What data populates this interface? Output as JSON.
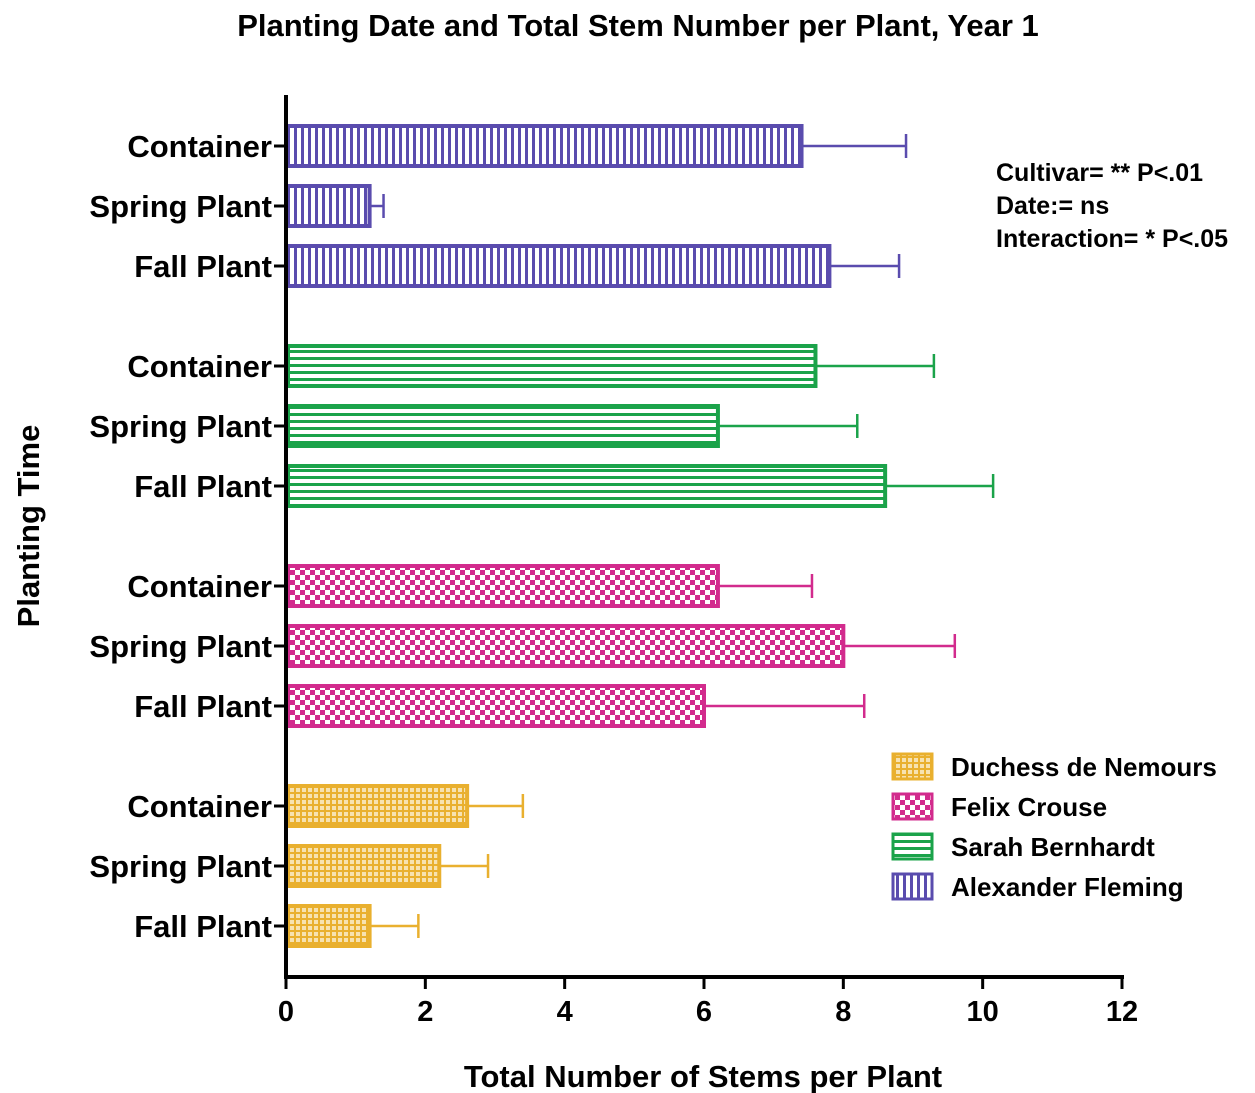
{
  "chart_data": {
    "type": "bar",
    "orientation": "horizontal",
    "title": "Planting Date and Total Stem Number per Plant, Year 1",
    "xlabel": "Total Number of Stems per Plant",
    "ylabel": "Planting Time",
    "xlim": [
      0,
      12
    ],
    "xticks": [
      "0",
      "2",
      "4",
      "6",
      "8",
      "10",
      "12"
    ],
    "categories": [
      "Container",
      "Spring Plant",
      "Fall Plant"
    ],
    "grid": false,
    "legend_position": "bottom-right",
    "annotations": [
      "Cultivar= ** P<.01",
      "Date:= ns",
      "Interaction= * P<.05"
    ],
    "series": [
      {
        "name": "Alexander Fleming",
        "color": "#5a4cae",
        "pattern": "vertical-lines",
        "values": [
          7.4,
          1.2,
          7.8
        ],
        "errors": [
          1.5,
          0.2,
          1.0
        ]
      },
      {
        "name": "Sarah Bernhardt",
        "color": "#1ba34a",
        "pattern": "horizontal-lines",
        "values": [
          7.6,
          6.2,
          8.6
        ],
        "errors": [
          1.7,
          2.0,
          1.55
        ]
      },
      {
        "name": "Felix Crouse",
        "color": "#d22b8d",
        "pattern": "checker",
        "values": [
          6.2,
          8.0,
          6.0
        ],
        "errors": [
          1.35,
          1.6,
          2.3
        ]
      },
      {
        "name": "Duchess de Nemours",
        "color": "#e9b02f",
        "pattern": "crosshatch",
        "values": [
          2.6,
          2.2,
          1.2
        ],
        "errors": [
          0.8,
          0.7,
          0.7
        ]
      }
    ],
    "legend_order": [
      "Duchess de Nemours",
      "Felix Crouse",
      "Sarah Bernhardt",
      "Alexander Fleming"
    ]
  }
}
